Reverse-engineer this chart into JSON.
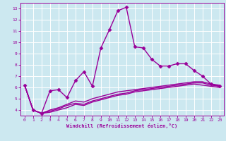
{
  "xlabel": "Windchill (Refroidissement éolien,°C)",
  "background_color": "#cce8f0",
  "grid_color": "#ffffff",
  "line_color": "#990099",
  "xlim": [
    -0.5,
    23.5
  ],
  "ylim": [
    3.5,
    13.5
  ],
  "xticks": [
    0,
    1,
    2,
    3,
    4,
    5,
    6,
    7,
    8,
    9,
    10,
    11,
    12,
    13,
    14,
    15,
    16,
    17,
    18,
    19,
    20,
    21,
    22,
    23
  ],
  "yticks": [
    4,
    5,
    6,
    7,
    8,
    9,
    10,
    11,
    12,
    13
  ],
  "series": [
    {
      "x": [
        0,
        1,
        2,
        3,
        4,
        5,
        6,
        7,
        8,
        9,
        10,
        11,
        12,
        13,
        14,
        15,
        16,
        17,
        18,
        19,
        20,
        21,
        22,
        23
      ],
      "y": [
        6.2,
        4.0,
        3.7,
        5.7,
        5.8,
        5.1,
        6.6,
        7.4,
        6.1,
        9.5,
        11.1,
        12.8,
        13.1,
        9.6,
        9.5,
        8.5,
        7.9,
        7.9,
        8.1,
        8.1,
        7.5,
        7.0,
        6.3,
        6.1
      ],
      "marker": "D",
      "markersize": 2.5,
      "linewidth": 1.0,
      "zorder": 4
    },
    {
      "x": [
        0,
        1,
        2,
        3,
        4,
        5,
        6,
        7,
        8,
        9,
        10,
        11,
        12,
        13,
        14,
        15,
        16,
        17,
        18,
        19,
        20,
        21,
        22,
        23
      ],
      "y": [
        6.2,
        4.0,
        3.7,
        4.0,
        4.2,
        4.5,
        4.8,
        4.7,
        5.0,
        5.2,
        5.4,
        5.6,
        5.7,
        5.8,
        5.9,
        6.0,
        6.1,
        6.2,
        6.3,
        6.4,
        6.5,
        6.5,
        6.3,
        6.2
      ],
      "marker": null,
      "markersize": 0,
      "linewidth": 1.0,
      "zorder": 3
    },
    {
      "x": [
        0,
        1,
        2,
        3,
        4,
        5,
        6,
        7,
        8,
        9,
        10,
        11,
        12,
        13,
        14,
        15,
        16,
        17,
        18,
        19,
        20,
        21,
        22,
        23
      ],
      "y": [
        6.2,
        4.0,
        3.7,
        3.9,
        4.1,
        4.4,
        4.6,
        4.5,
        4.8,
        5.0,
        5.2,
        5.4,
        5.5,
        5.7,
        5.8,
        5.9,
        6.0,
        6.1,
        6.2,
        6.3,
        6.4,
        6.4,
        6.2,
        6.1
      ],
      "marker": null,
      "markersize": 0,
      "linewidth": 1.0,
      "zorder": 3
    },
    {
      "x": [
        0,
        1,
        2,
        3,
        4,
        5,
        6,
        7,
        8,
        9,
        10,
        11,
        12,
        13,
        14,
        15,
        16,
        17,
        18,
        19,
        20,
        21,
        22,
        23
      ],
      "y": [
        6.2,
        4.0,
        3.7,
        3.8,
        4.0,
        4.2,
        4.5,
        4.4,
        4.7,
        4.9,
        5.1,
        5.3,
        5.4,
        5.6,
        5.7,
        5.8,
        5.9,
        6.0,
        6.1,
        6.2,
        6.3,
        6.2,
        6.1,
        6.0
      ],
      "marker": null,
      "markersize": 0,
      "linewidth": 1.0,
      "zorder": 3
    }
  ]
}
